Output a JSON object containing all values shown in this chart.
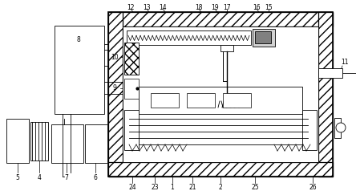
{
  "bg_color": "#ffffff",
  "fig_width": 4.44,
  "fig_height": 2.38,
  "dpi": 100,
  "lw_main": 0.9,
  "lw_thin": 0.6,
  "fs_label": 5.5
}
